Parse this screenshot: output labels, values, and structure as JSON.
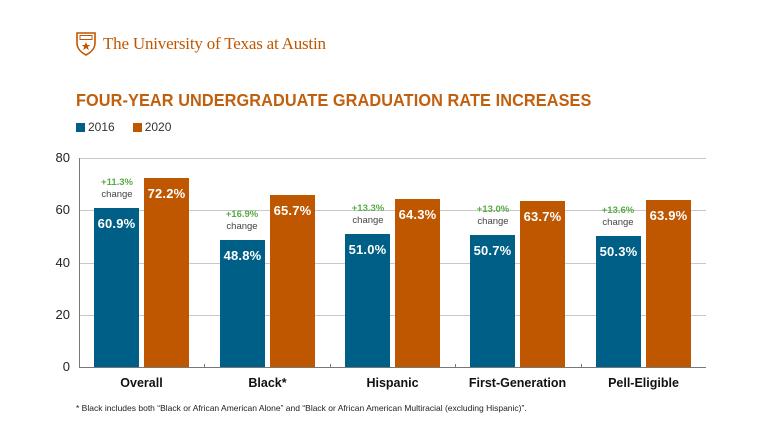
{
  "header": {
    "brand_name": "The University of Texas at Austin",
    "logo_icon": "ut-shield-icon",
    "brand_color": "#bf5700"
  },
  "title": "FOUR-YEAR UNDERGRADUATE GRADUATION RATE INCREASES",
  "legend": [
    {
      "label": "2016",
      "color": "#005f86"
    },
    {
      "label": "2020",
      "color": "#bf5700"
    }
  ],
  "change_word": "change",
  "footnote": "* Black includes both “Black or African American Alone” and “Black or African American Multiracial (excluding Hispanic)”.",
  "colors": {
    "series_2016": "#005f86",
    "series_2020": "#bf5700",
    "change_text": "#5aaa46",
    "title": "#c0600e"
  },
  "chart_data": {
    "type": "bar",
    "title": "FOUR-YEAR UNDERGRADUATE GRADUATION RATE INCREASES",
    "xlabel": "",
    "ylabel": "",
    "categories": [
      "Overall",
      "Black*",
      "Hispanic",
      "First-Generation",
      "Pell-Eligible"
    ],
    "series": [
      {
        "name": "2016",
        "values": [
          60.9,
          48.8,
          51.0,
          50.7,
          50.3
        ],
        "labels": [
          "60.9%",
          "48.8%",
          "51.0%",
          "50.7%",
          "50.3%"
        ]
      },
      {
        "name": "2020",
        "values": [
          72.2,
          65.7,
          64.3,
          63.7,
          63.9
        ],
        "labels": [
          "72.2%",
          "65.7%",
          "64.3%",
          "63.7%",
          "63.9%"
        ]
      }
    ],
    "annotations": [
      "+11.3%",
      "+16.9%",
      "+13.3%",
      "+13.0%",
      "+13.6%"
    ],
    "annotation_suffix": "change",
    "yticks": [
      0,
      20,
      40,
      60,
      80
    ],
    "ylim": [
      0,
      80
    ],
    "grid": true,
    "legend_position": "top-left",
    "footnote": "* Black includes both “Black or African American Alone” and “Black or African American Multiracial (excluding Hispanic)”."
  }
}
